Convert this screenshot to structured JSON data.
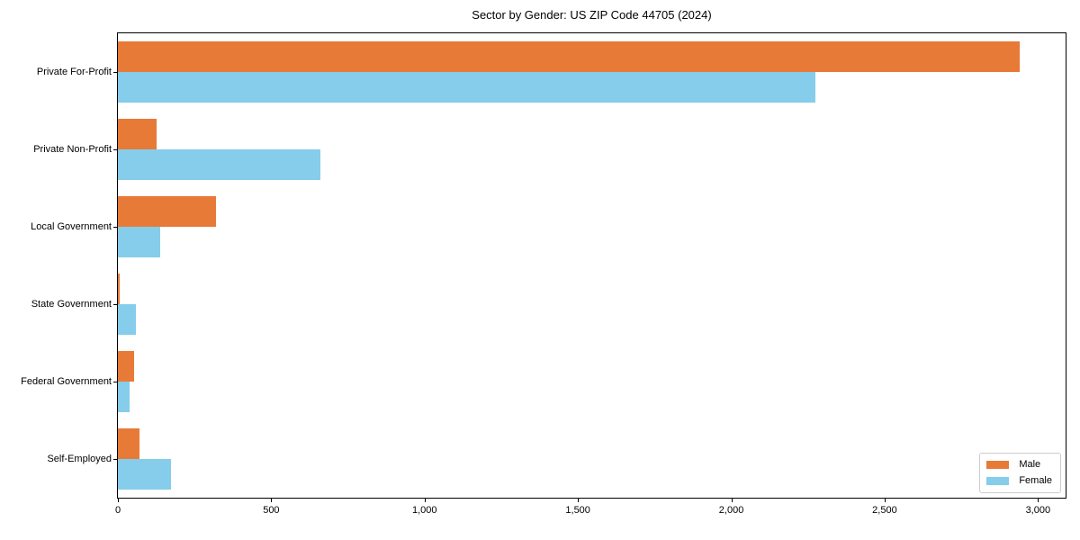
{
  "chart_data": {
    "type": "bar",
    "orientation": "horizontal",
    "title": "Sector by Gender: US ZIP Code 44705 (2024)",
    "xlabel": "",
    "ylabel": "",
    "categories": [
      "Private For-Profit",
      "Private Non-Profit",
      "Local Government",
      "State Government",
      "Federal Government",
      "Self-Employed"
    ],
    "series": [
      {
        "name": "Male",
        "color": "#e87a38",
        "values": [
          2941,
          125,
          320,
          7,
          54,
          70
        ]
      },
      {
        "name": "Female",
        "color": "#85cdea",
        "values": [
          2273,
          659,
          137,
          59,
          37,
          173
        ]
      }
    ],
    "xlim": [
      0,
      3090
    ],
    "x_ticks": [
      0,
      500,
      1000,
      1500,
      2000,
      2500,
      3000
    ],
    "x_tick_labels": [
      "0",
      "500",
      "1,000",
      "1,500",
      "2,000",
      "2,500",
      "3,000"
    ],
    "grid": false,
    "legend_position": "lower right",
    "colors": {
      "spine": "#000000",
      "text": "#000000",
      "legend_border": "#cccccc"
    }
  }
}
